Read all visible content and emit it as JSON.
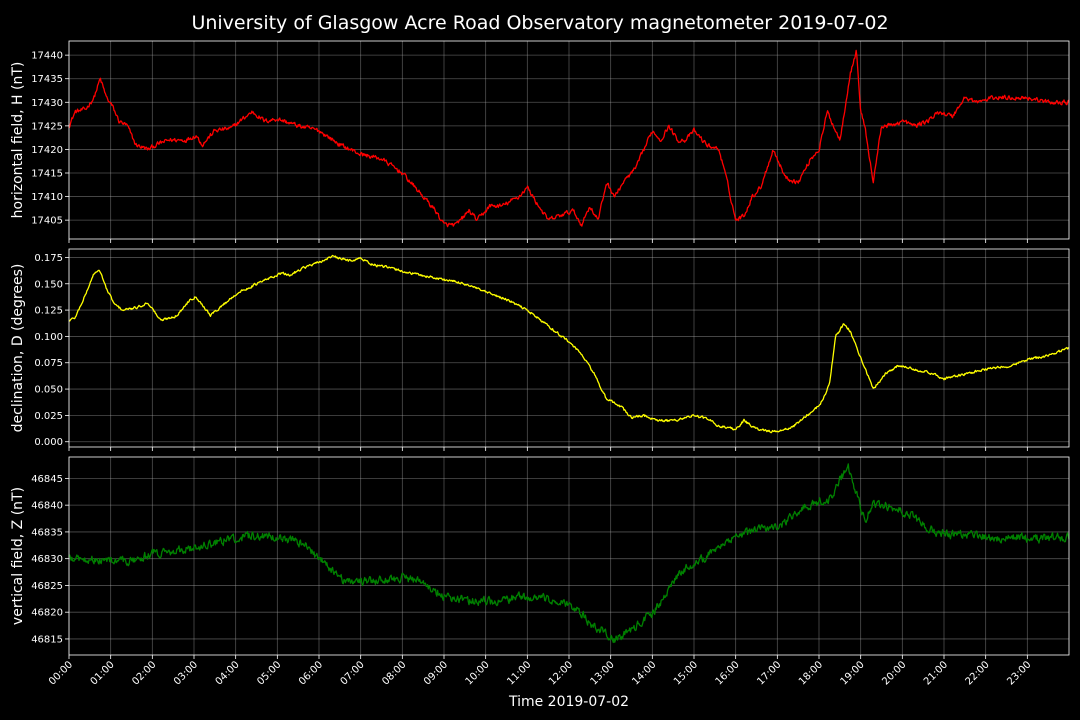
{
  "chart_data": {
    "type": "line",
    "title": "University of Glasgow Acre Road Observatory magnetometer 2019-07-02",
    "xlabel": "Time 2019-07-02",
    "x_ticks": [
      "00:00",
      "01:00",
      "02:00",
      "03:00",
      "04:00",
      "05:00",
      "06:00",
      "07:00",
      "08:00",
      "09:00",
      "10:00",
      "11:00",
      "12:00",
      "13:00",
      "14:00",
      "15:00",
      "16:00",
      "17:00",
      "18:00",
      "19:00",
      "20:00",
      "21:00",
      "22:00",
      "23:00"
    ],
    "xlim": [
      0,
      24
    ],
    "grid": true,
    "panels": [
      {
        "ylabel": "horizontal field, H (nT)",
        "color": "#ff0000",
        "ylim": [
          17401,
          17443
        ],
        "y_ticks": [
          17405,
          17410,
          17415,
          17420,
          17425,
          17430,
          17435,
          17440
        ],
        "y_tick_labels": [
          "17405",
          "17410",
          "17415",
          "17420",
          "17425",
          "17430",
          "17435",
          "17440"
        ],
        "noise": 0.6,
        "x": [
          0,
          0.15,
          0.4,
          0.6,
          0.75,
          0.9,
          1.05,
          1.2,
          1.4,
          1.6,
          1.9,
          2.1,
          2.4,
          2.8,
          3.05,
          3.2,
          3.5,
          3.9,
          4.1,
          4.4,
          4.7,
          5.0,
          5.5,
          6.0,
          6.5,
          7.0,
          7.5,
          8.0,
          8.4,
          8.8,
          9.0,
          9.3,
          9.6,
          9.8,
          10.1,
          10.4,
          10.8,
          11.0,
          11.2,
          11.5,
          11.8,
          12.1,
          12.3,
          12.5,
          12.7,
          12.9,
          13.1,
          13.3,
          13.6,
          13.8,
          14.0,
          14.2,
          14.4,
          14.6,
          14.8,
          15.0,
          15.3,
          15.6,
          15.8,
          16.0,
          16.2,
          16.4,
          16.6,
          16.9,
          17.2,
          17.5,
          17.8,
          18.0,
          18.2,
          18.5,
          18.75,
          18.9,
          19.0,
          19.1,
          19.3,
          19.5,
          19.7,
          20.0,
          20.3,
          20.6,
          20.9,
          21.2,
          21.5,
          21.8,
          22.2,
          22.6,
          23.0,
          23.5,
          24.0
        ],
        "values": [
          17425,
          17428,
          17428.5,
          17431,
          17435,
          17431,
          17429,
          17426,
          17425,
          17421,
          17420,
          17421,
          17422,
          17422,
          17423,
          17421,
          17424,
          17424.5,
          17426,
          17428,
          17426,
          17426.5,
          17425,
          17424,
          17421,
          17419,
          17418,
          17415,
          17411,
          17407,
          17404,
          17404,
          17407,
          17405,
          17408,
          17408,
          17410,
          17412,
          17409,
          17405,
          17406,
          17407,
          17404,
          17408,
          17405,
          17413,
          17410,
          17413,
          17416,
          17420,
          17424,
          17422,
          17425,
          17422,
          17422,
          17424,
          17421,
          17420,
          17413,
          17405,
          17406,
          17410,
          17412,
          17420,
          17414,
          17413,
          17418,
          17420,
          17428,
          17422,
          17436,
          17441,
          17428,
          17425,
          17413,
          17425,
          17425,
          17426,
          17425,
          17426,
          17428,
          17427,
          17431,
          17430,
          17431,
          17431,
          17431,
          17430,
          17430
        ]
      },
      {
        "ylabel": "declination, D (degrees)",
        "color": "#ffff00",
        "ylim": [
          -0.005,
          0.183
        ],
        "y_ticks": [
          0,
          0.025,
          0.05,
          0.075,
          0.1,
          0.125,
          0.15,
          0.175
        ],
        "y_tick_labels": [
          "0.000",
          "0.025",
          "0.050",
          "0.075",
          "0.100",
          "0.125",
          "0.150",
          "0.175"
        ],
        "noise": 0.0015,
        "x": [
          0,
          0.15,
          0.4,
          0.6,
          0.75,
          0.9,
          1.1,
          1.3,
          1.6,
          1.9,
          2.2,
          2.6,
          2.9,
          3.05,
          3.2,
          3.4,
          3.7,
          4.0,
          4.4,
          4.8,
          5.1,
          5.3,
          5.6,
          6.0,
          6.3,
          6.7,
          7.0,
          7.3,
          7.7,
          8.2,
          8.6,
          9.0,
          9.5,
          10.0,
          10.5,
          11.0,
          11.5,
          12.0,
          12.3,
          12.6,
          12.9,
          13.2,
          13.5,
          13.8,
          14.1,
          14.5,
          15.0,
          15.3,
          15.6,
          16.0,
          16.2,
          16.5,
          16.8,
          17.1,
          17.4,
          17.7,
          17.9,
          18.1,
          18.25,
          18.4,
          18.6,
          18.75,
          18.9,
          19.1,
          19.3,
          19.6,
          19.9,
          20.2,
          20.6,
          21.0,
          21.4,
          21.8,
          22.2,
          22.6,
          23.0,
          23.5,
          24.0
        ],
        "values": [
          0.115,
          0.118,
          0.14,
          0.16,
          0.162,
          0.145,
          0.13,
          0.125,
          0.127,
          0.132,
          0.115,
          0.12,
          0.135,
          0.138,
          0.13,
          0.12,
          0.13,
          0.14,
          0.148,
          0.155,
          0.16,
          0.158,
          0.165,
          0.17,
          0.176,
          0.172,
          0.174,
          0.168,
          0.165,
          0.16,
          0.157,
          0.154,
          0.15,
          0.142,
          0.135,
          0.125,
          0.11,
          0.095,
          0.083,
          0.065,
          0.04,
          0.035,
          0.023,
          0.025,
          0.02,
          0.02,
          0.025,
          0.022,
          0.015,
          0.012,
          0.02,
          0.012,
          0.01,
          0.01,
          0.015,
          0.025,
          0.03,
          0.04,
          0.055,
          0.1,
          0.112,
          0.105,
          0.09,
          0.07,
          0.05,
          0.065,
          0.072,
          0.07,
          0.066,
          0.06,
          0.063,
          0.067,
          0.07,
          0.072,
          0.078,
          0.082,
          0.089
        ]
      },
      {
        "ylabel": "vertical field, Z (nT)",
        "color": "#008000",
        "ylim": [
          46812,
          46849
        ],
        "y_ticks": [
          46815,
          46820,
          46825,
          46830,
          46835,
          46840,
          46845
        ],
        "y_tick_labels": [
          "46815",
          "46820",
          "46825",
          "46830",
          "46835",
          "46840",
          "46845"
        ],
        "noise": 1.0,
        "x": [
          0,
          0.5,
          1.0,
          1.5,
          2.0,
          2.5,
          3.0,
          3.5,
          4.0,
          4.5,
          5.0,
          5.3,
          5.6,
          6.0,
          6.3,
          6.6,
          7.0,
          7.5,
          8.0,
          8.5,
          9.0,
          9.4,
          9.8,
          10.2,
          10.6,
          11.0,
          11.4,
          11.8,
          12.2,
          12.5,
          12.7,
          12.9,
          13.1,
          13.4,
          13.7,
          14.0,
          14.3,
          14.6,
          15.0,
          15.4,
          15.8,
          16.2,
          16.6,
          17.0,
          17.4,
          17.7,
          18.0,
          18.3,
          18.5,
          18.7,
          18.9,
          19.1,
          19.3,
          19.6,
          20.0,
          20.4,
          20.8,
          21.2,
          21.6,
          22.0,
          22.4,
          22.8,
          23.2,
          23.6,
          24.0
        ],
        "values": [
          46830,
          46830,
          46829.5,
          46829.5,
          46831,
          46831.5,
          46832,
          46833,
          46834,
          46834.2,
          46834.2,
          46833.5,
          46833,
          46830,
          46828,
          46826,
          46825.5,
          46826,
          46826.5,
          46825.5,
          46823,
          46822.5,
          46822,
          46822,
          46822.5,
          46823,
          46822.5,
          46822,
          46820.5,
          46818,
          46817,
          46816,
          46815,
          46816,
          46818,
          46820,
          46823,
          46827,
          46829,
          46831,
          46833,
          46834.5,
          46835.5,
          46836,
          46838,
          46840,
          46840.5,
          46841,
          46845,
          46847,
          46842,
          46837,
          46840,
          46840,
          46839,
          46837,
          46835,
          46834.5,
          46834.5,
          46834,
          46833.8,
          46834,
          46833.8,
          46834,
          46834
        ]
      }
    ]
  }
}
